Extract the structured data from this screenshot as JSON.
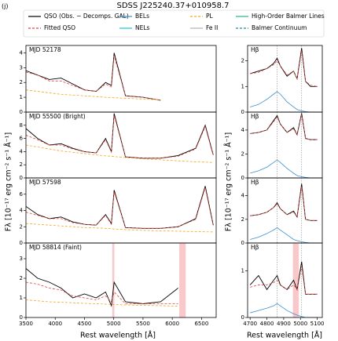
{
  "figure": {
    "label": "(j)",
    "title": "SDSS J225240.37+010958.7",
    "x_label": "Rest wavelength [Å]",
    "y_label": "Fλ [10⁻¹⁷ erg cm⁻² s⁻¹ Å⁻¹]",
    "legend": [
      {
        "name": "QSO (Obs. − Decomps. GAL)",
        "color": "#000000",
        "dash": false
      },
      {
        "name": "Fitted QSO",
        "color": "#e8443a",
        "dash": true
      },
      {
        "name": "BELs",
        "color": "#3a8fd0",
        "dash": false
      },
      {
        "name": "NELs",
        "color": "#1fc3d6",
        "dash": false
      },
      {
        "name": "PL",
        "color": "#f5a623",
        "dash": true
      },
      {
        "name": "Fe II",
        "color": "#b0b0b0",
        "dash": false
      },
      {
        "name": "High-Order Balmer Lines",
        "color": "#2cb28a",
        "dash": false
      },
      {
        "name": "Balmer Continuum",
        "color": "#1a8aa0",
        "dash": true
      }
    ]
  },
  "chart_data": [
    {
      "type": "line",
      "annotation": "MJD 52178",
      "xlim": [
        3500,
        6750
      ],
      "ylim": [
        0,
        4.5
      ],
      "yticks": [
        0,
        1,
        2,
        3,
        4
      ],
      "x": [
        3500,
        3700,
        3900,
        4100,
        4300,
        4500,
        4700,
        4861,
        4960,
        5007,
        5200,
        5500,
        5800,
        6100,
        6400,
        6563,
        6700
      ],
      "series": [
        {
          "name": "QSO (Obs. − Decomps. GAL)",
          "color": "#000000",
          "values": [
            2.8,
            2.5,
            2.2,
            2.3,
            1.9,
            1.5,
            1.4,
            2.0,
            1.8,
            4.0,
            1.1,
            1.0,
            0.8,
            null,
            null,
            null,
            null
          ]
        },
        {
          "name": "Fitted QSO",
          "color": "#e8443a",
          "dash": true,
          "values": [
            2.7,
            2.5,
            2.1,
            2.1,
            1.8,
            1.5,
            1.4,
            1.9,
            1.7,
            3.8,
            1.1,
            1.0,
            0.8,
            null,
            null,
            null,
            null
          ]
        },
        {
          "name": "PL",
          "color": "#f5a623",
          "dash": true,
          "values": [
            1.5,
            1.4,
            1.3,
            1.2,
            1.15,
            1.1,
            1.05,
            1.0,
            0.98,
            0.97,
            0.93,
            0.88,
            0.83,
            null,
            null,
            null,
            null
          ]
        }
      ]
    },
    {
      "type": "line",
      "annotation": "MJD 55500 (Bright)",
      "xlim": [
        3500,
        6750
      ],
      "ylim": [
        0,
        10
      ],
      "yticks": [
        0,
        2,
        4,
        6,
        8
      ],
      "x": [
        3500,
        3700,
        3900,
        4100,
        4300,
        4500,
        4700,
        4861,
        4960,
        5007,
        5200,
        5500,
        5800,
        6100,
        6400,
        6563,
        6700
      ],
      "series": [
        {
          "name": "QSO (Obs. − Decomps. GAL)",
          "color": "#000000",
          "values": [
            7.5,
            6.0,
            5.0,
            5.2,
            4.5,
            4.0,
            3.8,
            6.0,
            4.0,
            9.8,
            3.2,
            3.0,
            3.0,
            3.4,
            4.5,
            8.0,
            3.5
          ]
        },
        {
          "name": "Fitted QSO",
          "color": "#e8443a",
          "dash": true,
          "values": [
            6.5,
            5.8,
            5.0,
            5.0,
            4.4,
            4.0,
            3.8,
            5.8,
            3.9,
            9.5,
            3.2,
            3.0,
            3.0,
            3.3,
            4.4,
            7.8,
            3.4
          ]
        },
        {
          "name": "PL",
          "color": "#f5a623",
          "dash": true,
          "values": [
            5.0,
            4.7,
            4.4,
            4.1,
            3.9,
            3.7,
            3.5,
            3.35,
            3.3,
            3.25,
            3.1,
            2.9,
            2.75,
            2.6,
            2.45,
            2.4,
            2.35
          ]
        }
      ]
    },
    {
      "type": "line",
      "annotation": "MJD 57598",
      "xlim": [
        3500,
        6750
      ],
      "ylim": [
        0,
        8
      ],
      "yticks": [
        0,
        2,
        4,
        6
      ],
      "x": [
        3500,
        3700,
        3900,
        4100,
        4300,
        4500,
        4700,
        4861,
        4960,
        5007,
        5200,
        5500,
        5800,
        6100,
        6400,
        6563,
        6700
      ],
      "series": [
        {
          "name": "QSO (Obs. − Decomps. GAL)",
          "color": "#000000",
          "values": [
            4.5,
            3.5,
            3.0,
            3.2,
            2.6,
            2.3,
            2.2,
            3.5,
            2.4,
            6.5,
            1.9,
            1.8,
            1.8,
            2.0,
            3.0,
            7.0,
            2.2
          ]
        },
        {
          "name": "Fitted QSO",
          "color": "#e8443a",
          "dash": true,
          "values": [
            3.8,
            3.4,
            3.0,
            3.0,
            2.5,
            2.3,
            2.2,
            3.4,
            2.3,
            6.3,
            1.9,
            1.8,
            1.8,
            2.0,
            2.9,
            6.8,
            2.1
          ]
        },
        {
          "name": "PL",
          "color": "#f5a623",
          "dash": true,
          "values": [
            2.4,
            2.3,
            2.2,
            2.1,
            2.0,
            1.9,
            1.85,
            1.8,
            1.75,
            1.72,
            1.65,
            1.55,
            1.5,
            1.45,
            1.4,
            1.38,
            1.36
          ]
        }
      ]
    },
    {
      "type": "line",
      "annotation": "MJD 58814 (Faint)",
      "xlim": [
        3500,
        6750
      ],
      "ylim": [
        0,
        3.8
      ],
      "yticks": [
        0,
        1,
        2,
        3
      ],
      "xticks": [
        3500,
        4000,
        4500,
        5000,
        5500,
        6000,
        6500
      ],
      "shaded": [
        [
          4975,
          5010
        ],
        [
          6120,
          6230
        ]
      ],
      "x": [
        3500,
        3700,
        3900,
        4100,
        4300,
        4500,
        4700,
        4861,
        4960,
        5007,
        5200,
        5500,
        5800,
        6100,
        6400,
        6563,
        6700
      ],
      "series": [
        {
          "name": "QSO (Obs. − Decomps. GAL)",
          "color": "#000000",
          "values": [
            2.5,
            2.0,
            1.8,
            1.5,
            1.0,
            1.2,
            1.0,
            1.3,
            0.6,
            1.8,
            0.8,
            0.7,
            0.8,
            1.5,
            null,
            null,
            null
          ]
        },
        {
          "name": "Fitted QSO",
          "color": "#e8443a",
          "dash": true,
          "values": [
            1.8,
            1.7,
            1.5,
            1.4,
            1.1,
            1.0,
            0.9,
            1.1,
            0.8,
            1.3,
            0.7,
            0.7,
            0.7,
            0.7,
            null,
            null,
            null
          ]
        },
        {
          "name": "PL",
          "color": "#f5a623",
          "dash": true,
          "values": [
            0.9,
            0.85,
            0.8,
            0.78,
            0.75,
            0.72,
            0.7,
            0.68,
            0.67,
            0.66,
            0.64,
            0.62,
            0.6,
            0.58,
            null,
            null,
            null
          ]
        }
      ]
    },
    {
      "type": "line",
      "annotation": "Hβ",
      "xlim": [
        4685,
        5130
      ],
      "ylim": [
        0,
        2.6
      ],
      "yticks": [
        0,
        1,
        2
      ],
      "vlines": [
        4861,
        5007
      ],
      "x": [
        4700,
        4750,
        4800,
        4840,
        4861,
        4880,
        4920,
        4959,
        4980,
        5007,
        5030,
        5060,
        5100
      ],
      "series": [
        {
          "name": "QSO (Obs. − Decomps. GAL)",
          "color": "#000000",
          "values": [
            1.5,
            1.6,
            1.7,
            1.9,
            2.1,
            1.8,
            1.4,
            1.6,
            1.3,
            2.5,
            1.2,
            1.0,
            1.0
          ]
        },
        {
          "name": "Fitted QSO",
          "color": "#e8443a",
          "dash": true,
          "values": [
            1.5,
            1.55,
            1.7,
            1.85,
            2.0,
            1.8,
            1.45,
            1.6,
            1.3,
            2.4,
            1.2,
            1.05,
            1.0
          ]
        },
        {
          "name": "BELs",
          "color": "#3a8fd0",
          "values": [
            0.2,
            0.3,
            0.5,
            0.7,
            0.8,
            0.7,
            0.4,
            0.2,
            0.1,
            0.05,
            0.02,
            0,
            0
          ]
        }
      ]
    },
    {
      "type": "line",
      "annotation": "Hβ",
      "xlim": [
        4685,
        5130
      ],
      "ylim": [
        0,
        5.5
      ],
      "yticks": [
        0,
        2,
        4
      ],
      "vlines": [
        4861,
        5007
      ],
      "x": [
        4700,
        4750,
        4800,
        4840,
        4861,
        4880,
        4920,
        4959,
        4980,
        5007,
        5030,
        5060,
        5100
      ],
      "series": [
        {
          "name": "QSO (Obs. − Decomps. GAL)",
          "color": "#000000",
          "values": [
            3.7,
            3.8,
            4.0,
            4.8,
            5.2,
            4.5,
            3.8,
            4.2,
            3.6,
            5.4,
            3.3,
            3.2,
            3.2
          ]
        },
        {
          "name": "Fitted QSO",
          "color": "#e8443a",
          "dash": true,
          "values": [
            3.7,
            3.8,
            4.0,
            4.7,
            5.1,
            4.5,
            3.8,
            4.1,
            3.6,
            5.3,
            3.3,
            3.2,
            3.2
          ]
        },
        {
          "name": "BELs",
          "color": "#3a8fd0",
          "values": [
            0.4,
            0.6,
            0.9,
            1.3,
            1.5,
            1.3,
            0.8,
            0.4,
            0.2,
            0.1,
            0.05,
            0,
            0
          ]
        }
      ]
    },
    {
      "type": "line",
      "annotation": "Hβ",
      "xlim": [
        4685,
        5130
      ],
      "ylim": [
        0,
        5.5
      ],
      "yticks": [
        0,
        2,
        4
      ],
      "vlines": [
        4861,
        5007
      ],
      "x": [
        4700,
        4750,
        4800,
        4840,
        4861,
        4880,
        4920,
        4959,
        4980,
        5007,
        5030,
        5060,
        5100
      ],
      "series": [
        {
          "name": "QSO (Obs. − Decomps. GAL)",
          "color": "#000000",
          "values": [
            2.3,
            2.4,
            2.6,
            3.0,
            3.4,
            2.9,
            2.4,
            2.7,
            2.2,
            5.0,
            2.0,
            1.9,
            1.9
          ]
        },
        {
          "name": "Fitted QSO",
          "color": "#e8443a",
          "dash": true,
          "values": [
            2.3,
            2.4,
            2.6,
            3.0,
            3.3,
            2.9,
            2.4,
            2.6,
            2.2,
            4.8,
            2.0,
            1.9,
            1.9
          ]
        },
        {
          "name": "BELs",
          "color": "#3a8fd0",
          "values": [
            0.3,
            0.5,
            0.8,
            1.1,
            1.3,
            1.1,
            0.7,
            0.3,
            0.2,
            0.1,
            0.05,
            0,
            0
          ]
        }
      ]
    },
    {
      "type": "line",
      "annotation": "Hβ",
      "xlim": [
        4685,
        5130
      ],
      "ylim": [
        0,
        1.6
      ],
      "yticks": [
        0,
        1
      ],
      "vlines": [
        4861,
        5007
      ],
      "xticks": [
        4700,
        4800,
        4900,
        5000,
        5100
      ],
      "shaded": [
        [
          4955,
          4990
        ]
      ],
      "x": [
        4700,
        4750,
        4800,
        4840,
        4861,
        4880,
        4920,
        4959,
        4980,
        5007,
        5030,
        5060,
        5100
      ],
      "series": [
        {
          "name": "QSO (Obs. − Decomps. GAL)",
          "color": "#000000",
          "values": [
            0.7,
            0.9,
            0.6,
            0.8,
            0.9,
            0.7,
            0.6,
            0.8,
            0.6,
            1.2,
            0.5,
            0.5,
            0.5
          ]
        },
        {
          "name": "Fitted QSO",
          "color": "#e8443a",
          "dash": true,
          "values": [
            0.65,
            0.7,
            0.7,
            0.75,
            0.8,
            0.7,
            0.6,
            0.7,
            0.6,
            1.1,
            0.5,
            0.5,
            0.5
          ]
        },
        {
          "name": "BELs",
          "color": "#3a8fd0",
          "values": [
            0.1,
            0.15,
            0.2,
            0.25,
            0.3,
            0.25,
            0.15,
            0.08,
            0.05,
            0.02,
            0,
            0,
            0
          ]
        }
      ]
    }
  ]
}
